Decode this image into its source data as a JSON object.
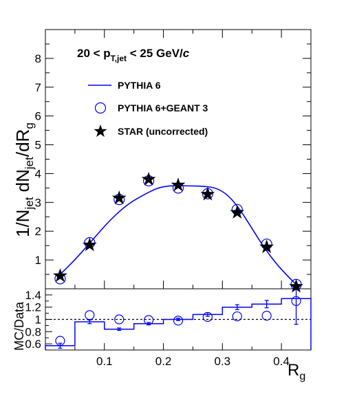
{
  "chart_data": [
    {
      "type": "scatter",
      "panel": "main",
      "title": "20 < p_T,jet < 25 GeV/c",
      "title_parts": {
        "prefix": "20 < p",
        "subscript": "T,jet",
        "suffix": " < 25 GeV/",
        "italic": "c"
      },
      "ylabel": "1/N_jet dN_jet/dR_g",
      "ylabel_parts": {
        "a": "1/N",
        "a_sub": "jet",
        "b": " dN",
        "b_sub": "jet",
        "c": "/dR",
        "c_sub": "g"
      },
      "ylim": [
        0,
        9
      ],
      "yticks": [
        1,
        2,
        3,
        4,
        5,
        6,
        7,
        8
      ],
      "xlim": [
        0,
        0.45
      ],
      "legend_position": "top-left",
      "series": [
        {
          "name": "PYTHIA 6",
          "style": "line",
          "color": "#0000ff",
          "x": [
            0.02,
            0.05,
            0.08,
            0.11,
            0.14,
            0.17,
            0.19,
            0.21,
            0.23,
            0.25,
            0.27,
            0.29,
            0.31,
            0.33,
            0.35,
            0.37,
            0.39,
            0.41,
            0.425
          ],
          "y": [
            0.4,
            1.0,
            1.7,
            2.4,
            2.95,
            3.3,
            3.5,
            3.58,
            3.58,
            3.57,
            3.56,
            3.5,
            3.25,
            2.75,
            2.1,
            1.45,
            0.9,
            0.45,
            0.15
          ]
        },
        {
          "name": "PYTHIA 6+GEANT 3",
          "style": "open-circle",
          "color": "#0000ff",
          "x": [
            0.025,
            0.075,
            0.125,
            0.175,
            0.225,
            0.275,
            0.325,
            0.375,
            0.425
          ],
          "y": [
            0.35,
            1.6,
            3.1,
            3.75,
            3.5,
            3.3,
            2.75,
            1.55,
            0.15
          ]
        },
        {
          "name": "STAR (uncorrected)",
          "style": "star",
          "color": "#000000",
          "x": [
            0.025,
            0.075,
            0.125,
            0.175,
            0.225,
            0.275,
            0.325,
            0.375,
            0.425
          ],
          "y": [
            0.45,
            1.52,
            3.15,
            3.8,
            3.6,
            3.28,
            2.65,
            1.45,
            0.08
          ]
        }
      ]
    },
    {
      "type": "line",
      "panel": "ratio",
      "xlabel": "R_g",
      "xlabel_parts": {
        "main": "R",
        "sub": "g"
      },
      "ylabel": "MC/Data",
      "ylim": [
        0.5,
        1.5
      ],
      "yticks": [
        0.6,
        0.8,
        1,
        1.2,
        1.4
      ],
      "ytick_labels": [
        "0.6",
        "0.8",
        "1",
        "1.2",
        "1.4"
      ],
      "xlim": [
        0,
        0.45
      ],
      "xticks": [
        0.1,
        0.2,
        0.3,
        0.4
      ],
      "xtick_labels": [
        "0.1",
        "0.2",
        "0.3",
        "0.4"
      ],
      "reference_line": 1.0,
      "series": [
        {
          "name": "PYTHIA 6",
          "style": "step-histogram",
          "color": "#0000ff",
          "bin_edges": [
            0,
            0.05,
            0.1,
            0.15,
            0.2,
            0.25,
            0.3,
            0.35,
            0.4,
            0.45
          ],
          "values": [
            0.57,
            0.96,
            0.84,
            0.93,
            1.0,
            1.08,
            1.2,
            1.25,
            1.34
          ],
          "errors": [
            0.04,
            0.03,
            0.02,
            0.02,
            0.02,
            0.03,
            0.04,
            0.06,
            0.42
          ]
        },
        {
          "name": "PYTHIA 6+GEANT 3",
          "style": "open-circle",
          "color": "#0000ff",
          "x": [
            0.025,
            0.075,
            0.125,
            0.175,
            0.225,
            0.275,
            0.325,
            0.375,
            0.425
          ],
          "y": [
            0.65,
            1.07,
            1.0,
            0.99,
            0.98,
            1.04,
            1.05,
            1.06,
            1.3
          ]
        }
      ]
    }
  ]
}
